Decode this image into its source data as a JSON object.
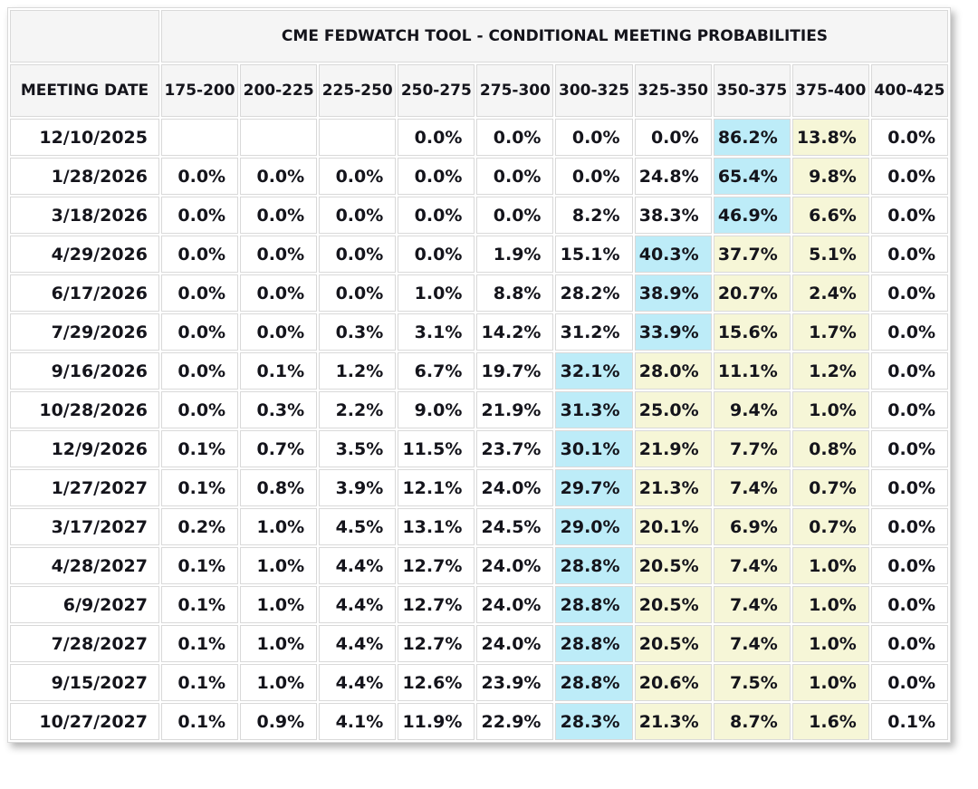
{
  "colors": {
    "highlight_blue": "#bdecf8",
    "highlight_yellow": "#f6f6d7",
    "header_bg": "#f5f5f5",
    "border": "#d9d9d9",
    "text": "#14141b"
  },
  "chart_data": {
    "type": "table",
    "title": "CME FEDWATCH TOOL - CONDITIONAL MEETING PROBABILITIES",
    "row_header_label": "MEETING DATE",
    "unit": "%",
    "columns": [
      "MEETING DATE",
      "175-200",
      "200-225",
      "225-250",
      "250-275",
      "275-300",
      "300-325",
      "325-350",
      "350-375",
      "375-400",
      "400-425"
    ],
    "rows": [
      {
        "date": "12/10/2025",
        "values": [
          null,
          null,
          null,
          0.0,
          0.0,
          0.0,
          0.0,
          86.2,
          13.8,
          0.0
        ],
        "blue_highlight_col": 7,
        "yellow_highlight_cols": [
          8
        ]
      },
      {
        "date": "1/28/2026",
        "values": [
          0.0,
          0.0,
          0.0,
          0.0,
          0.0,
          0.0,
          24.8,
          65.4,
          9.8,
          0.0
        ],
        "blue_highlight_col": 7,
        "yellow_highlight_cols": [
          8
        ]
      },
      {
        "date": "3/18/2026",
        "values": [
          0.0,
          0.0,
          0.0,
          0.0,
          0.0,
          8.2,
          38.3,
          46.9,
          6.6,
          0.0
        ],
        "blue_highlight_col": 7,
        "yellow_highlight_cols": [
          8
        ]
      },
      {
        "date": "4/29/2026",
        "values": [
          0.0,
          0.0,
          0.0,
          0.0,
          1.9,
          15.1,
          40.3,
          37.7,
          5.1,
          0.0
        ],
        "blue_highlight_col": 6,
        "yellow_highlight_cols": [
          7,
          8
        ]
      },
      {
        "date": "6/17/2026",
        "values": [
          0.0,
          0.0,
          0.0,
          1.0,
          8.8,
          28.2,
          38.9,
          20.7,
          2.4,
          0.0
        ],
        "blue_highlight_col": 6,
        "yellow_highlight_cols": [
          7,
          8
        ]
      },
      {
        "date": "7/29/2026",
        "values": [
          0.0,
          0.0,
          0.3,
          3.1,
          14.2,
          31.2,
          33.9,
          15.6,
          1.7,
          0.0
        ],
        "blue_highlight_col": 6,
        "yellow_highlight_cols": [
          7,
          8
        ]
      },
      {
        "date": "9/16/2026",
        "values": [
          0.0,
          0.1,
          1.2,
          6.7,
          19.7,
          32.1,
          28.0,
          11.1,
          1.2,
          0.0
        ],
        "blue_highlight_col": 5,
        "yellow_highlight_cols": [
          6,
          7,
          8
        ]
      },
      {
        "date": "10/28/2026",
        "values": [
          0.0,
          0.3,
          2.2,
          9.0,
          21.9,
          31.3,
          25.0,
          9.4,
          1.0,
          0.0
        ],
        "blue_highlight_col": 5,
        "yellow_highlight_cols": [
          6,
          7,
          8
        ]
      },
      {
        "date": "12/9/2026",
        "values": [
          0.1,
          0.7,
          3.5,
          11.5,
          23.7,
          30.1,
          21.9,
          7.7,
          0.8,
          0.0
        ],
        "blue_highlight_col": 5,
        "yellow_highlight_cols": [
          6,
          7,
          8
        ]
      },
      {
        "date": "1/27/2027",
        "values": [
          0.1,
          0.8,
          3.9,
          12.1,
          24.0,
          29.7,
          21.3,
          7.4,
          0.7,
          0.0
        ],
        "blue_highlight_col": 5,
        "yellow_highlight_cols": [
          6,
          7,
          8
        ]
      },
      {
        "date": "3/17/2027",
        "values": [
          0.2,
          1.0,
          4.5,
          13.1,
          24.5,
          29.0,
          20.1,
          6.9,
          0.7,
          0.0
        ],
        "blue_highlight_col": 5,
        "yellow_highlight_cols": [
          6,
          7,
          8
        ]
      },
      {
        "date": "4/28/2027",
        "values": [
          0.1,
          1.0,
          4.4,
          12.7,
          24.0,
          28.8,
          20.5,
          7.4,
          1.0,
          0.0
        ],
        "blue_highlight_col": 5,
        "yellow_highlight_cols": [
          6,
          7,
          8
        ]
      },
      {
        "date": "6/9/2027",
        "values": [
          0.1,
          1.0,
          4.4,
          12.7,
          24.0,
          28.8,
          20.5,
          7.4,
          1.0,
          0.0
        ],
        "blue_highlight_col": 5,
        "yellow_highlight_cols": [
          6,
          7,
          8
        ]
      },
      {
        "date": "7/28/2027",
        "values": [
          0.1,
          1.0,
          4.4,
          12.7,
          24.0,
          28.8,
          20.5,
          7.4,
          1.0,
          0.0
        ],
        "blue_highlight_col": 5,
        "yellow_highlight_cols": [
          6,
          7,
          8
        ]
      },
      {
        "date": "9/15/2027",
        "values": [
          0.1,
          1.0,
          4.4,
          12.6,
          23.9,
          28.8,
          20.6,
          7.5,
          1.0,
          0.0
        ],
        "blue_highlight_col": 5,
        "yellow_highlight_cols": [
          6,
          7,
          8
        ]
      },
      {
        "date": "10/27/2027",
        "values": [
          0.1,
          0.9,
          4.1,
          11.9,
          22.9,
          28.3,
          21.3,
          8.7,
          1.6,
          0.1
        ],
        "blue_highlight_col": 5,
        "yellow_highlight_cols": [
          6,
          7,
          8
        ]
      }
    ]
  }
}
